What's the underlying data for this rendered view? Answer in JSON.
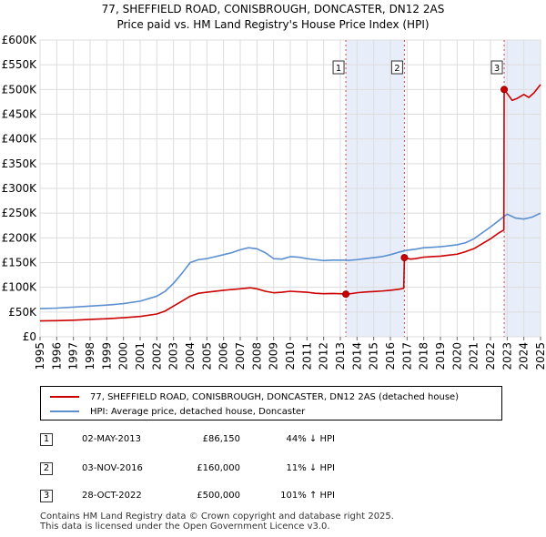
{
  "chart_data": {
    "type": "line",
    "title": "77, SHEFFIELD ROAD, CONISBROUGH, DONCASTER, DN12 2AS",
    "subtitle": "Price paid vs. HM Land Registry's House Price Index (HPI)",
    "xlim": [
      1995,
      2025
    ],
    "ylim": [
      0,
      600000
    ],
    "y_ticks": [
      {
        "value": 0,
        "label": "£0"
      },
      {
        "value": 50000,
        "label": "£50K"
      },
      {
        "value": 100000,
        "label": "£100K"
      },
      {
        "value": 150000,
        "label": "£150K"
      },
      {
        "value": 200000,
        "label": "£200K"
      },
      {
        "value": 250000,
        "label": "£250K"
      },
      {
        "value": 300000,
        "label": "£300K"
      },
      {
        "value": 350000,
        "label": "£350K"
      },
      {
        "value": 400000,
        "label": "£400K"
      },
      {
        "value": 450000,
        "label": "£450K"
      },
      {
        "value": 500000,
        "label": "£500K"
      },
      {
        "value": 550000,
        "label": "£550K"
      },
      {
        "value": 600000,
        "label": "£600K"
      }
    ],
    "x_ticks": [
      "1995",
      "1996",
      "1997",
      "1998",
      "1999",
      "2000",
      "2001",
      "2002",
      "2003",
      "2004",
      "2005",
      "2006",
      "2007",
      "2008",
      "2009",
      "2010",
      "2011",
      "2012",
      "2013",
      "2014",
      "2015",
      "2016",
      "2017",
      "2018",
      "2019",
      "2020",
      "2021",
      "2022",
      "2023",
      "2024",
      "2025"
    ],
    "grid": true,
    "series": [
      {
        "name": "77, SHEFFIELD ROAD, CONISBROUGH, DONCASTER, DN12 2AS (detached house)",
        "color": "#cc0000",
        "x": [
          1995.0,
          1996.0,
          1997.0,
          1998.0,
          1999.0,
          2000.0,
          2001.0,
          2002.0,
          2002.5,
          2003.0,
          2003.5,
          2004.0,
          2004.5,
          2005.0,
          2006.0,
          2007.0,
          2007.6,
          2008.0,
          2008.5,
          2009.0,
          2009.5,
          2010.0,
          2010.5,
          2011.0,
          2011.5,
          2012.0,
          2012.5,
          2013.0,
          2013.33,
          2013.6,
          2014.0,
          2014.5,
          2015.0,
          2015.5,
          2016.0,
          2016.5,
          2016.8,
          2016.84,
          2017.2,
          2017.5,
          2018.0,
          2018.5,
          2019.0,
          2019.5,
          2020.0,
          2020.5,
          2021.0,
          2021.5,
          2022.0,
          2022.5,
          2022.8,
          2022.82,
          2023.0,
          2023.3,
          2023.6,
          2024.0,
          2024.3,
          2024.6,
          2025.0
        ],
        "y": [
          32000,
          32500,
          33500,
          35000,
          36500,
          38500,
          41000,
          46000,
          52000,
          62000,
          72000,
          82000,
          88000,
          90000,
          94000,
          97000,
          99000,
          97000,
          92000,
          89000,
          90000,
          92000,
          91000,
          90000,
          88000,
          87000,
          87500,
          87000,
          86150,
          87000,
          89000,
          90500,
          91500,
          92500,
          94000,
          96000,
          98000,
          160000,
          157000,
          158000,
          161000,
          162000,
          163000,
          165000,
          167000,
          172000,
          178000,
          188000,
          198000,
          210000,
          216000,
          500000,
          492000,
          478000,
          482000,
          490000,
          484000,
          493000,
          510000
        ]
      },
      {
        "name": "HPI: Average price, detached house, Doncaster",
        "color": "#5b8fd0",
        "x": [
          1995.0,
          1996.0,
          1997.0,
          1998.0,
          1999.0,
          2000.0,
          2001.0,
          2002.0,
          2002.5,
          2003.0,
          2003.5,
          2004.0,
          2004.5,
          2005.0,
          2005.5,
          2006.0,
          2006.5,
          2007.0,
          2007.5,
          2008.0,
          2008.5,
          2009.0,
          2009.5,
          2010.0,
          2010.5,
          2011.0,
          2011.5,
          2012.0,
          2012.5,
          2013.0,
          2013.5,
          2014.0,
          2014.5,
          2015.0,
          2015.5,
          2016.0,
          2016.5,
          2017.0,
          2017.5,
          2018.0,
          2018.5,
          2019.0,
          2019.5,
          2020.0,
          2020.5,
          2021.0,
          2021.5,
          2022.0,
          2022.5,
          2022.8,
          2023.0,
          2023.5,
          2024.0,
          2024.5,
          2025.0
        ],
        "y": [
          57000,
          58000,
          60000,
          62000,
          64000,
          67000,
          72000,
          82000,
          92000,
          108000,
          128000,
          150000,
          156000,
          158000,
          162000,
          166000,
          170000,
          176000,
          180000,
          178000,
          170000,
          158000,
          157000,
          162000,
          161000,
          158000,
          156000,
          154000,
          155000,
          155000,
          154500,
          156000,
          158000,
          160000,
          162000,
          166000,
          171000,
          175000,
          177000,
          180000,
          181000,
          182000,
          184000,
          186000,
          190000,
          198000,
          210000,
          222000,
          235000,
          243000,
          248000,
          240000,
          238000,
          242000,
          250000
        ]
      }
    ],
    "sales": [
      {
        "label": "1",
        "x": 2013.33,
        "y": 86150
      },
      {
        "label": "2",
        "x": 2016.84,
        "y": 160000
      },
      {
        "label": "3",
        "x": 2022.82,
        "y": 500000
      }
    ]
  },
  "legend": {
    "property": "77, SHEFFIELD ROAD, CONISBROUGH, DONCASTER, DN12 2AS (detached house)",
    "hpi": "HPI: Average price, detached house, Doncaster",
    "property_color": "#cc0000",
    "hpi_color": "#5b8fd0"
  },
  "sales_table": [
    {
      "num": "1",
      "date": "02-MAY-2013",
      "price": "£86,150",
      "hpi": "44% ↓ HPI"
    },
    {
      "num": "2",
      "date": "03-NOV-2016",
      "price": "£160,000",
      "hpi": "11% ↓ HPI"
    },
    {
      "num": "3",
      "date": "28-OCT-2022",
      "price": "£500,000",
      "hpi": "101% ↑ HPI"
    }
  ],
  "footer": {
    "line1": "Contains HM Land Registry data © Crown copyright and database right 2025.",
    "line2": "This data is licensed under the Open Government Licence v3.0."
  }
}
